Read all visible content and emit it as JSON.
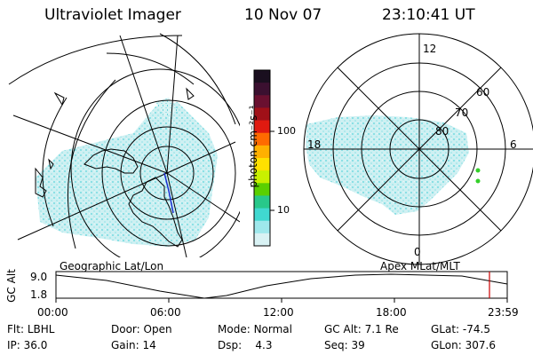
{
  "header": {
    "title": "Ultraviolet Imager",
    "date": "10 Nov 07",
    "time": "23:10:41 UT"
  },
  "colorbar": {
    "label": "photon cm⁻²s⁻¹",
    "ticks": [
      "100",
      "10"
    ],
    "colors": [
      "#1a0f1f",
      "#3b1030",
      "#6a1030",
      "#a01018",
      "#e01a10",
      "#ff6a00",
      "#ffb000",
      "#ffe000",
      "#c8f000",
      "#5ad000",
      "#28c88a",
      "#40d8d0",
      "#9ee8ec",
      "#d9f2f4"
    ]
  },
  "left_map": {
    "label": "Geographic Lat/Lon"
  },
  "right_map": {
    "label": "Apex MLat/MLT",
    "mlt_labels": [
      "12",
      "18",
      "6",
      "0"
    ],
    "mlat_labels": [
      "60",
      "70",
      "80"
    ]
  },
  "timeline": {
    "y_label": "GC Alt",
    "y_ticks": [
      "9.0",
      "1.8"
    ],
    "x_ticks": [
      "00:00",
      "06:00",
      "12:00",
      "18:00",
      "23:59"
    ],
    "marker_color": "#cc0000"
  },
  "info": {
    "row1": [
      {
        "key": "Flt:",
        "value": "LBHL"
      },
      {
        "key": "Door:",
        "value": "Open"
      },
      {
        "key": "Mode:",
        "value": "Normal"
      },
      {
        "key": "GC Alt:",
        "value": "7.1 Re"
      },
      {
        "key": "GLat:",
        "value": "-74.5"
      }
    ],
    "row2": [
      {
        "key": "IP:",
        "value": "36.0"
      },
      {
        "key": "Gain:",
        "value": "14"
      },
      {
        "key": "Dsp:",
        "value": "4.3"
      },
      {
        "key": "Seq:",
        "value": "39"
      },
      {
        "key": "GLon:",
        "value": "307.6"
      }
    ]
  }
}
